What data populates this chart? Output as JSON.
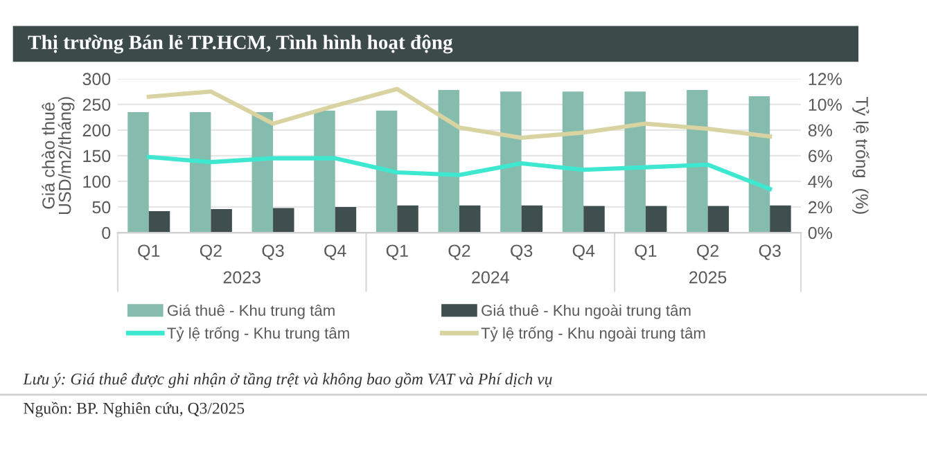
{
  "chart_data": {
    "type": "bar",
    "title": "Thị trường Bán lẻ TP.HCM, Tình hình hoạt động",
    "categories": [
      "Q1",
      "Q2",
      "Q3",
      "Q4",
      "Q1",
      "Q2",
      "Q3",
      "Q4",
      "Q1",
      "Q2",
      "Q3"
    ],
    "series": [
      {
        "name": "Giá thuê - Khu trung tâm",
        "color": "#86bcad",
        "values": [
          235,
          235,
          235,
          238,
          238,
          278,
          275,
          275,
          275,
          278,
          266
        ]
      },
      {
        "name": "Giá thuê - Khu ngoài trung tâm",
        "color": "#3f4f4f",
        "values": [
          42,
          46,
          48,
          50,
          53,
          53,
          53,
          52,
          52,
          52,
          53
        ]
      },
      {
        "name": "Tỷ lệ trống - Khu trung tâm",
        "type": "line",
        "axis": "y2",
        "color": "#3ee8d0",
        "values": [
          5.9,
          5.5,
          5.8,
          5.8,
          4.7,
          4.5,
          5.4,
          4.9,
          5.1,
          5.3,
          3.4
        ]
      },
      {
        "name": "Tỷ lệ trống - Khu ngoài trung tâm",
        "type": "line",
        "axis": "y2",
        "color": "#d8d3a0",
        "values": [
          10.6,
          11.0,
          8.5,
          9.9,
          11.2,
          8.2,
          7.4,
          7.8,
          8.5,
          8.1,
          7.5
        ]
      }
    ],
    "ylabel": "Giá chào thuê\nUSD/m2/tháng)",
    "y2label": "Tỷ lệ trống  (%)",
    "ylim": [
      0,
      300
    ],
    "yticks": [
      0,
      50,
      100,
      150,
      200,
      250,
      300
    ],
    "y2lim": [
      0,
      12
    ],
    "y2ticks": [
      {
        "value": 0,
        "label": "0%"
      },
      {
        "value": 2,
        "label": "2%"
      },
      {
        "value": 4,
        "label": "4%"
      },
      {
        "value": 6,
        "label": "6%"
      },
      {
        "value": 8,
        "label": "8%"
      },
      {
        "value": 10,
        "label": "10%"
      },
      {
        "value": 12,
        "label": "12%"
      }
    ],
    "grid": "y",
    "legend": "bottom",
    "annotations": [
      "2023",
      "2024",
      "2025",
      "Lưu ý: Giá thuê được ghi nhận ở tầng trệt và không bao gồm VAT và Phí dịch vụ",
      "Nguồn: BP. Nghiên cứu, Q3/2025"
    ]
  }
}
